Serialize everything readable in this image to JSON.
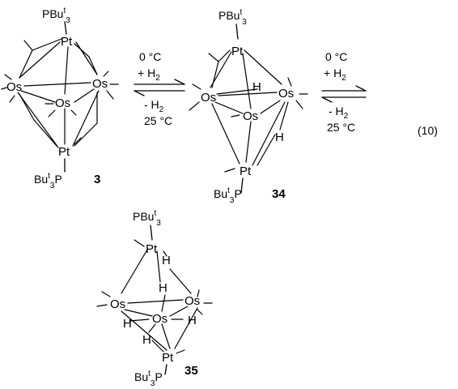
{
  "scheme": {
    "equation_number": "(10)",
    "compounds": [
      {
        "id": "3",
        "ligand_top": "PBu",
        "ligand_top_sup": "t",
        "ligand_top_sub": "3",
        "ligand_bottom": "Bu",
        "ligand_bottom_sup": "t",
        "ligand_bottom_sub": "3",
        "ligand_bottom_end": "P",
        "pt": "Pt",
        "os": "Os",
        "h": "H"
      },
      {
        "id": "34"
      },
      {
        "id": "35"
      }
    ],
    "equilibria": [
      {
        "forward_temp": "0 °C",
        "forward_reagent": "+ H",
        "forward_reagent_sub": "2",
        "reverse_reagent": "- H",
        "reverse_reagent_sub": "2",
        "reverse_temp": "25 °C"
      },
      {
        "forward_temp": "0 °C",
        "forward_reagent": "+ H",
        "forward_reagent_sub": "2",
        "reverse_reagent": "- H",
        "reverse_reagent_sub": "2",
        "reverse_temp": "25 °C"
      }
    ]
  }
}
